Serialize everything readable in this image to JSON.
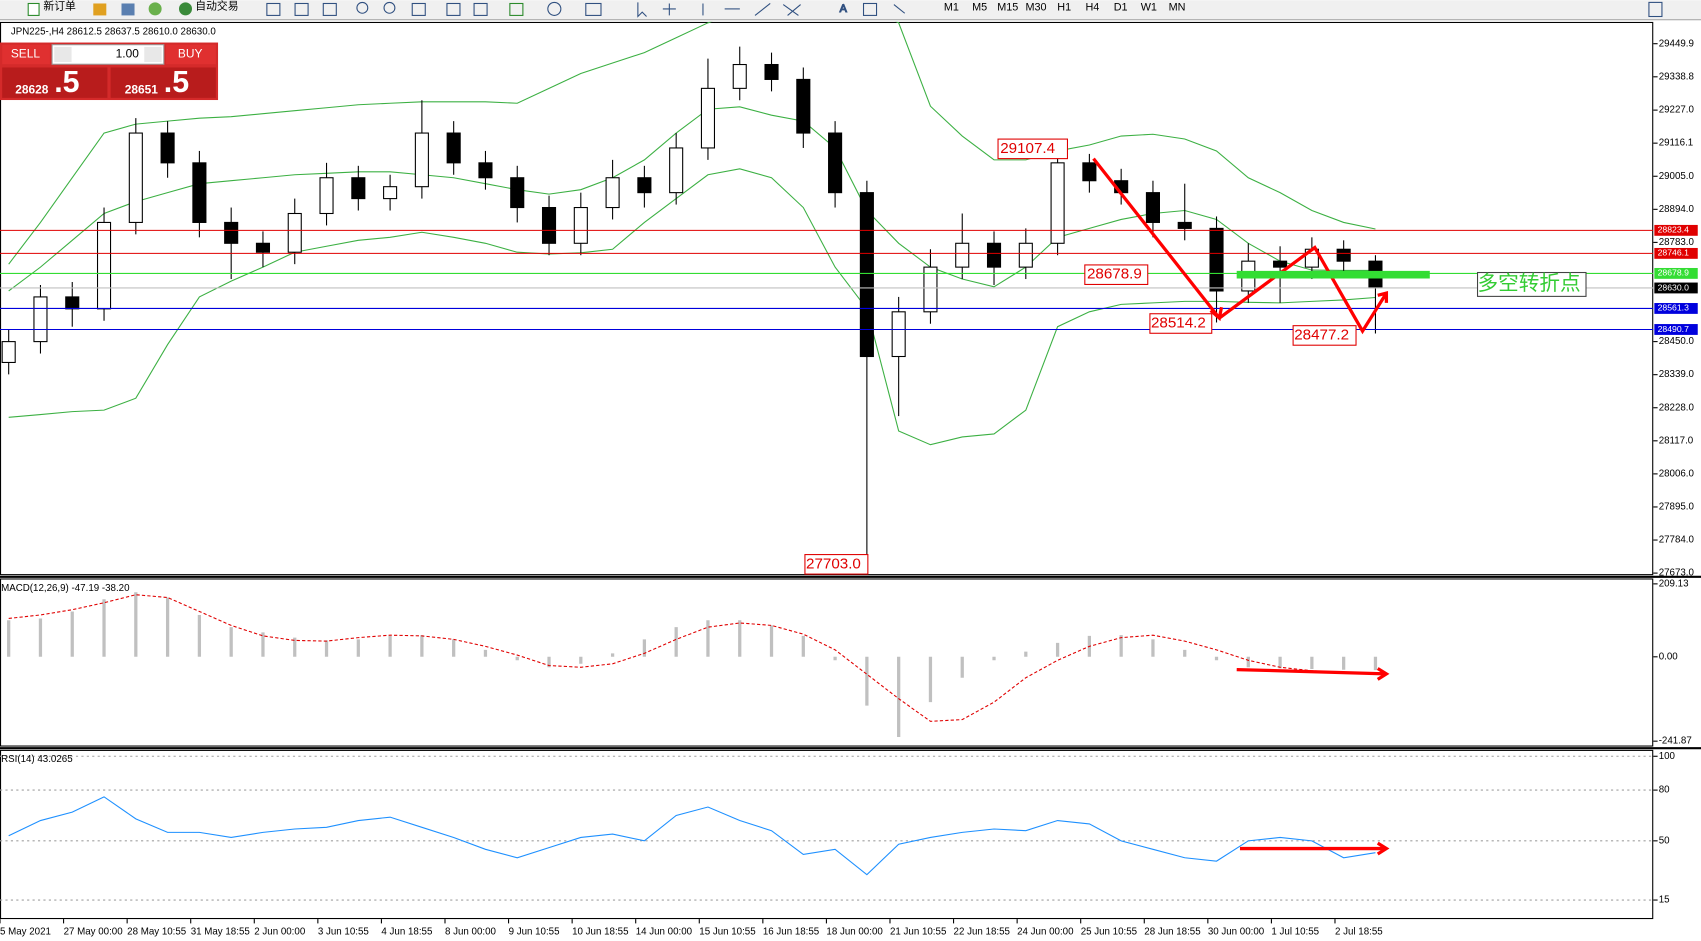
{
  "toolbar": {
    "new_order": "新订单",
    "auto_trading": "自动交易",
    "timeframes": [
      "M1",
      "M5",
      "M15",
      "M30",
      "H1",
      "H4",
      "D1",
      "W1",
      "MN"
    ]
  },
  "trade_panel": {
    "sell": "SELL",
    "buy": "BUY",
    "lots": "1.00",
    "bid_main": "28628",
    "bid_frac": ".5",
    "ask_main": "28651",
    "ask_frac": ".5"
  },
  "chart_data": [
    {
      "type": "candlestick",
      "title": "JPN225-,H4  28612.5 28637.5 28610.0 28630.0",
      "categories": [
        "5 May 2021",
        null,
        "27 May 00:00",
        null,
        "28 May 10:55",
        null,
        "31 May 18:55",
        null,
        "2 Jun 00:00",
        null,
        "3 Jun 10:55",
        null,
        "4 Jun 18:55",
        null,
        "8 Jun 00:00",
        null,
        "9 Jun 10:55",
        null,
        "10 Jun 18:55",
        null,
        "14 Jun 00:00",
        null,
        "15 Jun 10:55",
        null,
        "16 Jun 18:55",
        null,
        "18 Jun 00:00",
        null,
        "21 Jun 10:55",
        null,
        "22 Jun 18:55",
        null,
        "24 Jun 00:00",
        null,
        "25 Jun 10:55",
        null,
        "28 Jun 18:55",
        null,
        "30 Jun 00:00",
        null,
        "1 Jul 10:55",
        null,
        "2 Jul 18:55",
        null
      ],
      "open": [
        28380,
        28450,
        28600,
        28560,
        28850,
        29150,
        29050,
        28850,
        28780,
        28750,
        28880,
        29000,
        28930,
        28970,
        29150,
        29050,
        29000,
        28900,
        28780,
        28900,
        29000,
        28950,
        29100,
        29300,
        29380,
        29330,
        29150,
        28950,
        28400,
        28550,
        28700,
        28780,
        28700,
        28780,
        29050,
        28990,
        28950,
        28850,
        28830,
        28620,
        28720,
        28700,
        28760,
        28720
      ],
      "high": [
        28490,
        28640,
        28650,
        28900,
        29200,
        29190,
        29090,
        28900,
        28820,
        28930,
        29050,
        29040,
        29010,
        29260,
        29190,
        29090,
        29040,
        28940,
        28950,
        29060,
        29040,
        29150,
        29400,
        29440,
        29420,
        29370,
        29190,
        28990,
        28600,
        28760,
        28880,
        28820,
        28830,
        29107.4,
        29080,
        29030,
        28990,
        28980,
        28870,
        28780,
        28770,
        28800,
        28790,
        28740
      ],
      "low": [
        28340,
        28410,
        28500,
        28520,
        28810,
        29000,
        28800,
        28660,
        28700,
        28710,
        28840,
        28890,
        28890,
        28930,
        29010,
        28960,
        28850,
        28740,
        28740,
        28860,
        28900,
        28910,
        29060,
        29260,
        29290,
        29100,
        28900,
        27703,
        28200,
        28510,
        28660,
        28640,
        28660,
        28740,
        28950,
        28910,
        28800,
        28790,
        28514.2,
        28580,
        28580,
        28660,
        28680,
        28477.2
      ],
      "close": [
        28450,
        28600,
        28560,
        28850,
        29150,
        29050,
        28850,
        28780,
        28750,
        28880,
        29000,
        28930,
        28970,
        29150,
        29050,
        29000,
        28900,
        28780,
        28900,
        29000,
        28950,
        29100,
        29300,
        29380,
        29330,
        29150,
        28950,
        28400,
        28550,
        28700,
        28780,
        28700,
        28780,
        29050,
        28990,
        28950,
        28850,
        28830,
        28620,
        28720,
        28700,
        28760,
        28720,
        28630
      ],
      "up_color": "#ffffff",
      "down_color": "#000000",
      "bands": [
        {
          "color": "#3cb043",
          "values": [
            28710,
            28850,
            29000,
            29150,
            29180,
            29190,
            29200,
            29205,
            29215,
            29225,
            29235,
            29245,
            29250,
            29255,
            29255,
            29255,
            29250,
            29300,
            29350,
            29385,
            29420,
            29470,
            29520,
            29560,
            29580,
            29600,
            29600,
            29570,
            29520,
            29240,
            29140,
            29060,
            29060,
            29090,
            29110,
            29140,
            29146,
            29130,
            29090,
            29000,
            28950,
            28890,
            28850,
            28828
          ]
        },
        {
          "color": "#3cb043",
          "values": [
            28620,
            28700,
            28790,
            28880,
            28920,
            28950,
            28980,
            28990,
            29000,
            29010,
            29015,
            29020,
            29020,
            29010,
            29000,
            28980,
            28960,
            28945,
            28960,
            29000,
            29060,
            29150,
            29230,
            29238,
            29210,
            29190,
            29100,
            28890,
            28780,
            28700,
            28660,
            28634,
            28700,
            28800,
            28830,
            28860,
            28880,
            28890,
            28860,
            28780,
            28720,
            28690,
            28689,
            28689
          ]
        },
        {
          "color": "#3cb043",
          "values": [
            28196,
            28205,
            28215,
            28220,
            28260,
            28440,
            28600,
            28653,
            28700,
            28750,
            28770,
            28790,
            28800,
            28817,
            28800,
            28780,
            28750,
            28744,
            28748,
            28760,
            28850,
            28930,
            29010,
            29030,
            29000,
            28900,
            28700,
            28560,
            28150,
            28104,
            28130,
            28140,
            28220,
            28500,
            28550,
            28575,
            28580,
            28585,
            28585,
            28582,
            28580,
            28585,
            28590,
            28598
          ]
        }
      ],
      "levels": [
        {
          "value": 28823.4,
          "label": "28823.4",
          "color": "#e00000"
        },
        {
          "value": 28746.1,
          "label": "28746.1",
          "color": "#e00000"
        },
        {
          "value": 28678.9,
          "label": "28678.9",
          "color": "#33dd33"
        },
        {
          "value": 28630,
          "label": "28630.0",
          "color": "#c0c0c0"
        },
        {
          "value": 28561.3,
          "label": "28561.3",
          "color": "#0000dd"
        },
        {
          "value": 28490.7,
          "label": "28490.7",
          "color": "#0000dd"
        }
      ],
      "annotations": [
        "29107.4",
        "28678.9",
        "28514.2",
        "28477.2",
        "27703.0",
        "多空转折点"
      ],
      "ylim": [
        27666,
        29523
      ],
      "yticks": [
        29449.9,
        29338.8,
        {
          "value": 29227,
          "label": "29227.0"
        },
        29116.1,
        {
          "value": 29005,
          "label": "29005.0"
        },
        {
          "value": 28894,
          "label": "28894.0"
        },
        {
          "value": 28783,
          "label": "28783.0"
        },
        {
          "value": 28450,
          "label": "28450.0"
        },
        {
          "value": 28339,
          "label": "28339.0"
        },
        {
          "value": 28228,
          "label": "28228.0"
        },
        {
          "value": 28117,
          "label": "28117.0"
        },
        {
          "value": 28006,
          "label": "28006.0"
        },
        {
          "value": 27895,
          "label": "27895.0"
        },
        {
          "value": 27784,
          "label": "27784.0"
        },
        {
          "value": 27673,
          "label": "27673.0"
        }
      ]
    },
    {
      "type": "macd",
      "title": "MACD(12,26,9) -47.19 -38.20",
      "histogram": [
        105,
        110,
        130,
        165,
        185,
        170,
        120,
        85,
        70,
        55,
        47,
        50,
        60,
        62,
        50,
        20,
        -10,
        -30,
        -20,
        10,
        50,
        85,
        105,
        105,
        90,
        60,
        -10,
        -140,
        -230,
        -130,
        -60,
        -10,
        15,
        40,
        60,
        62,
        50,
        20,
        -10,
        -30,
        -33,
        -35,
        -37,
        -38
      ],
      "signal": [
        110,
        120,
        135,
        155,
        178,
        170,
        130,
        90,
        60,
        47,
        45,
        55,
        62,
        60,
        50,
        30,
        5,
        -25,
        -30,
        -20,
        10,
        50,
        85,
        97,
        90,
        65,
        20,
        -50,
        -120,
        -185,
        -180,
        -130,
        -60,
        -10,
        30,
        55,
        62,
        45,
        20,
        -10,
        -30,
        -40,
        -45,
        -47
      ],
      "histogram_color": "#c0c0c0",
      "signal_color": "#e00000",
      "ylim": [
        -257.4,
        224.7
      ],
      "yticks": [
        209.13,
        {
          "value": 0,
          "label": "0.00"
        },
        -241.87
      ]
    },
    {
      "type": "line",
      "title": "RSI(14) 43.0265",
      "values": [
        53,
        62,
        67,
        76,
        63,
        55,
        55,
        52,
        55,
        57,
        58,
        62,
        64,
        58,
        52,
        45,
        40,
        46,
        52,
        54,
        50,
        65,
        70,
        62,
        56,
        42,
        45,
        30,
        48,
        52,
        55,
        57,
        56,
        62,
        60,
        50,
        45,
        40,
        38,
        50,
        52,
        50,
        40,
        43
      ],
      "color": "#1e90ff",
      "ylim": [
        3.75,
        103.8
      ],
      "yticks": [
        100,
        80,
        50,
        15
      ],
      "grid": true
    }
  ]
}
